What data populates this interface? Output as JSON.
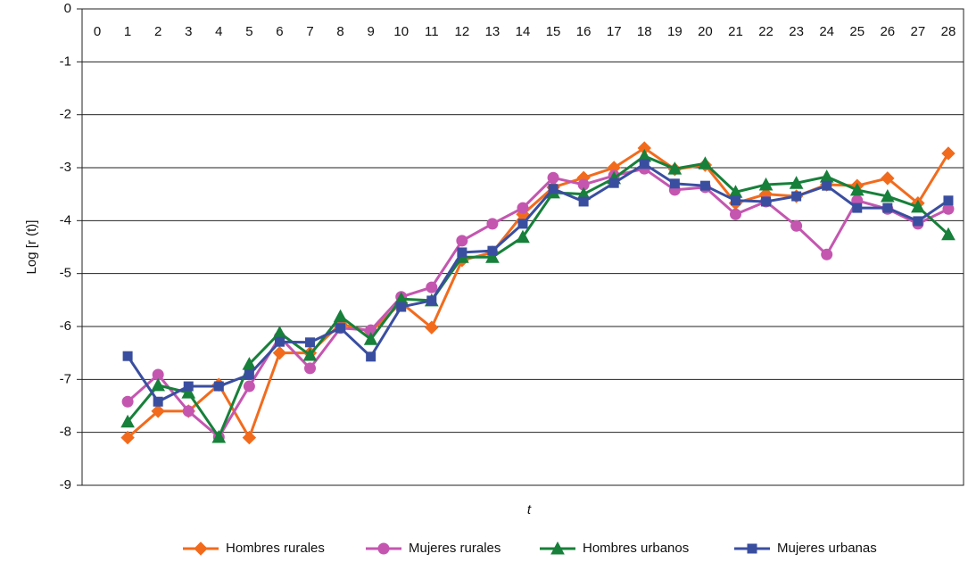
{
  "chart_data": {
    "type": "line",
    "y_label": "Log [r (t)]",
    "x_label": "t",
    "x": [
      0,
      1,
      2,
      3,
      4,
      5,
      6,
      7,
      8,
      9,
      10,
      11,
      12,
      13,
      14,
      15,
      16,
      17,
      18,
      19,
      20,
      21,
      22,
      23,
      24,
      25,
      26,
      27,
      28
    ],
    "xlim": [
      -0.5,
      28.5
    ],
    "xticks": [
      0,
      1,
      2,
      3,
      4,
      5,
      6,
      7,
      8,
      9,
      10,
      11,
      12,
      13,
      14,
      15,
      16,
      17,
      18,
      19,
      20,
      21,
      22,
      23,
      24,
      25,
      26,
      27,
      28
    ],
    "ylim": [
      -9,
      0
    ],
    "yticks": [
      0,
      -1,
      -2,
      -3,
      -4,
      -5,
      -6,
      -7,
      -8,
      -9
    ],
    "grid": true,
    "legend": "bottom",
    "series": [
      {
        "name": "Hombres rurales",
        "color": "#f26b1d",
        "marker": "diamond",
        "values": [
          null,
          -8.1,
          -7.6,
          -7.6,
          -7.1,
          -8.1,
          -6.5,
          -6.5,
          -5.95,
          -6.1,
          -5.55,
          -6.02,
          -4.75,
          -4.6,
          -3.88,
          -3.37,
          -3.19,
          -3.0,
          -2.63,
          -3.03,
          -2.95,
          -3.67,
          -3.5,
          -3.54,
          -3.32,
          -3.34,
          -3.2,
          -3.67,
          -2.73
        ]
      },
      {
        "name": "Mujeres rurales",
        "color": "#c456b0",
        "marker": "circle",
        "values": [
          null,
          -7.42,
          -6.91,
          -7.6,
          -8.09,
          -7.13,
          -6.2,
          -6.79,
          -6.03,
          -6.07,
          -5.44,
          -5.26,
          -4.38,
          -4.06,
          -3.76,
          -3.19,
          -3.32,
          -3.15,
          -3.02,
          -3.42,
          -3.37,
          -3.88,
          -3.64,
          -4.1,
          -4.64,
          -3.62,
          -3.78,
          -4.06,
          -3.78
        ]
      },
      {
        "name": "Hombres urbanos",
        "color": "#17803a",
        "marker": "triangle",
        "values": [
          null,
          -7.8,
          -7.11,
          -7.25,
          -8.09,
          -6.71,
          -6.12,
          -6.54,
          -5.81,
          -6.24,
          -5.48,
          -5.51,
          -4.69,
          -4.69,
          -4.31,
          -3.47,
          -3.5,
          -3.2,
          -2.78,
          -3.02,
          -2.92,
          -3.46,
          -3.32,
          -3.29,
          -3.17,
          -3.42,
          -3.54,
          -3.74,
          -4.26
        ]
      },
      {
        "name": "Mujeres urbanas",
        "color": "#3a4ea0",
        "marker": "square",
        "values": [
          null,
          -6.56,
          -7.42,
          -7.13,
          -7.13,
          -6.91,
          -6.29,
          -6.3,
          -6.03,
          -6.57,
          -5.63,
          -5.51,
          -4.6,
          -4.57,
          -4.06,
          -3.4,
          -3.64,
          -3.29,
          -2.93,
          -3.3,
          -3.34,
          -3.62,
          -3.64,
          -3.54,
          -3.34,
          -3.76,
          -3.76,
          -4.01,
          -3.62
        ]
      }
    ]
  }
}
